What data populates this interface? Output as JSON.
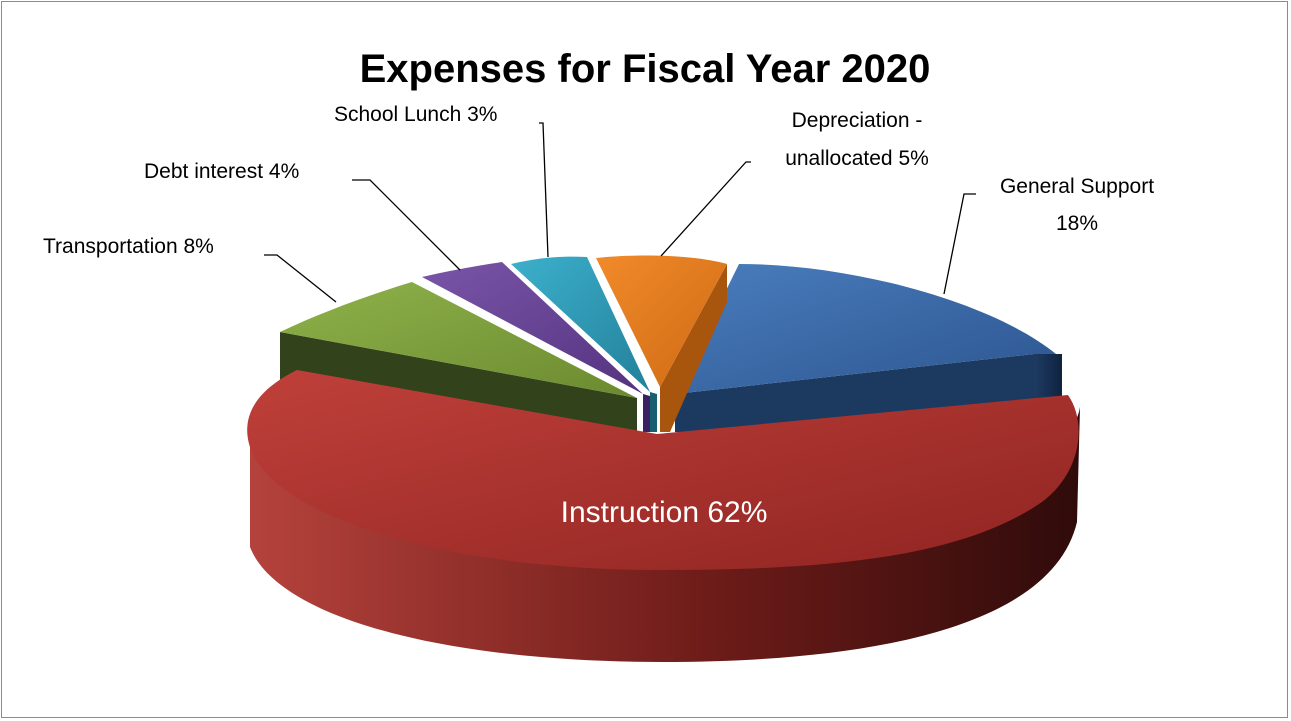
{
  "chart_data": {
    "type": "pie",
    "title": "Expenses for Fiscal Year 2020",
    "slices": [
      {
        "label": "Instruction",
        "value": 62,
        "label_lines": [
          "Instruction 62%"
        ],
        "color": "#a8302c"
      },
      {
        "label": "Transportation",
        "value": 8,
        "label_lines": [
          "Transportation 8%"
        ],
        "color": "#80a23a"
      },
      {
        "label": "Debt interest",
        "value": 4,
        "label_lines": [
          "Debt interest  4%"
        ],
        "color": "#6a4496"
      },
      {
        "label": "School Lunch",
        "value": 3,
        "label_lines": [
          "School Lunch  3%"
        ],
        "color": "#2f9ab5"
      },
      {
        "label": "Depreciation - unallocated",
        "value": 5,
        "label_lines": [
          "Depreciation -",
          "unallocated 5%"
        ],
        "color": "#e57b20"
      },
      {
        "label": "General Support",
        "value": 18,
        "label_lines": [
          "General Support",
          "18%"
        ],
        "color": "#3a6aa8"
      }
    ],
    "legend": "none",
    "style": "3d-exploded"
  }
}
